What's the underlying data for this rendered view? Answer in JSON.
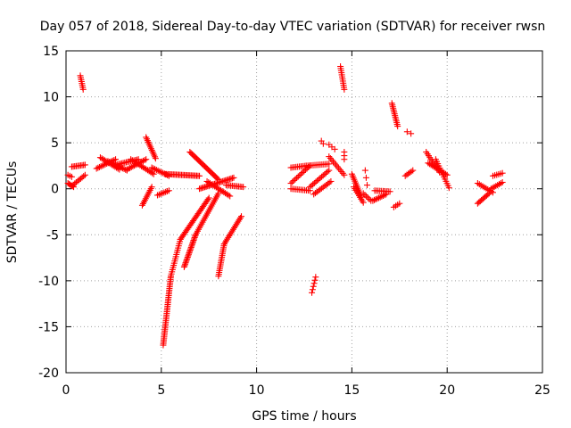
{
  "chart_data": {
    "type": "scatter",
    "title": "Day 057 of 2018, Sidereal Day-to-day VTEC variation (SDTVAR) for receiver rwsn",
    "xlabel": "GPS time / hours",
    "ylabel": "SDTVAR / TECUs",
    "xlim": [
      0,
      25
    ],
    "ylim": [
      -20,
      15
    ],
    "xticks": [
      0,
      5,
      10,
      15,
      20,
      25
    ],
    "yticks": [
      -20,
      -15,
      -10,
      -5,
      0,
      5,
      10,
      15
    ],
    "grid": true,
    "marker": "+",
    "color": "#ff0000",
    "segments": [
      {
        "from": [
          0.1,
          0.6
        ],
        "to": [
          0.4,
          0.2
        ],
        "n": 6
      },
      {
        "from": [
          0.1,
          1.5
        ],
        "to": [
          0.3,
          1.3
        ],
        "n": 3
      },
      {
        "from": [
          0.3,
          0.3
        ],
        "to": [
          1.0,
          1.5
        ],
        "n": 10
      },
      {
        "from": [
          0.3,
          2.4
        ],
        "to": [
          1.0,
          2.6
        ],
        "n": 10
      },
      {
        "from": [
          0.75,
          12.3
        ],
        "to": [
          0.9,
          10.8
        ],
        "n": 8
      },
      {
        "from": [
          1.6,
          2.2
        ],
        "to": [
          2.6,
          3.2
        ],
        "n": 14
      },
      {
        "from": [
          1.8,
          3.4
        ],
        "to": [
          2.8,
          2.1
        ],
        "n": 14
      },
      {
        "from": [
          2.2,
          3.0
        ],
        "to": [
          3.2,
          2.0
        ],
        "n": 14
      },
      {
        "from": [
          2.6,
          2.6
        ],
        "to": [
          3.8,
          3.2
        ],
        "n": 16
      },
      {
        "from": [
          3.2,
          2.1
        ],
        "to": [
          4.2,
          3.2
        ],
        "n": 14
      },
      {
        "from": [
          3.4,
          3.2
        ],
        "to": [
          4.6,
          1.6
        ],
        "n": 16
      },
      {
        "from": [
          4.2,
          5.6
        ],
        "to": [
          4.7,
          3.3
        ],
        "n": 14
      },
      {
        "from": [
          4.5,
          2.3
        ],
        "to": [
          5.4,
          1.4
        ],
        "n": 12
      },
      {
        "from": [
          4.0,
          -1.8
        ],
        "to": [
          4.5,
          0.2
        ],
        "n": 12
      },
      {
        "from": [
          4.8,
          -0.7
        ],
        "to": [
          5.4,
          -0.2
        ],
        "n": 8
      },
      {
        "from": [
          5.2,
          1.6
        ],
        "to": [
          7.0,
          1.4
        ],
        "n": 26
      },
      {
        "from": [
          5.1,
          -17.0
        ],
        "to": [
          5.5,
          -9.5
        ],
        "n": 40
      },
      {
        "from": [
          5.5,
          -9.5
        ],
        "to": [
          6.0,
          -5.5
        ],
        "n": 18
      },
      {
        "from": [
          6.0,
          -5.5
        ],
        "to": [
          7.5,
          -1.0
        ],
        "n": 30
      },
      {
        "from": [
          6.2,
          -8.5
        ],
        "to": [
          6.8,
          -5.0
        ],
        "n": 24
      },
      {
        "from": [
          6.8,
          -5.0
        ],
        "to": [
          8.0,
          -0.5
        ],
        "n": 24
      },
      {
        "from": [
          6.5,
          4.0
        ],
        "to": [
          8.0,
          1.0
        ],
        "n": 26
      },
      {
        "from": [
          7.0,
          0.0
        ],
        "to": [
          8.8,
          1.2
        ],
        "n": 26
      },
      {
        "from": [
          7.4,
          0.8
        ],
        "to": [
          8.6,
          -0.8
        ],
        "n": 16
      },
      {
        "from": [
          8.0,
          -9.5
        ],
        "to": [
          8.3,
          -6.0
        ],
        "n": 18
      },
      {
        "from": [
          8.3,
          -6.0
        ],
        "to": [
          9.2,
          -3.0
        ],
        "n": 18
      },
      {
        "from": [
          8.4,
          0.4
        ],
        "to": [
          9.3,
          0.2
        ],
        "n": 12
      },
      {
        "from": [
          11.8,
          2.3
        ],
        "to": [
          12.6,
          2.5
        ],
        "n": 10
      },
      {
        "from": [
          11.8,
          0.6
        ],
        "to": [
          12.8,
          2.5
        ],
        "n": 14
      },
      {
        "from": [
          11.8,
          0.0
        ],
        "to": [
          12.8,
          -0.2
        ],
        "n": 12
      },
      {
        "from": [
          12.6,
          2.5
        ],
        "to": [
          13.8,
          2.7
        ],
        "n": 14
      },
      {
        "from": [
          12.8,
          0.2
        ],
        "to": [
          13.8,
          2.0
        ],
        "n": 14
      },
      {
        "from": [
          13.0,
          -0.6
        ],
        "to": [
          13.9,
          0.8
        ],
        "n": 12
      },
      {
        "from": [
          12.9,
          -11.3
        ],
        "to": [
          13.1,
          -9.6
        ],
        "n": 6
      },
      {
        "from": [
          13.4,
          5.2
        ],
        "to": [
          13.5,
          4.9
        ],
        "n": 2
      },
      {
        "from": [
          13.8,
          4.8
        ],
        "to": [
          14.1,
          4.3
        ],
        "n": 3
      },
      {
        "from": [
          13.8,
          3.5
        ],
        "to": [
          14.6,
          1.5
        ],
        "n": 12
      },
      {
        "from": [
          14.4,
          13.3
        ],
        "to": [
          14.6,
          10.8
        ],
        "n": 12
      },
      {
        "from": [
          14.6,
          4.0
        ],
        "to": [
          14.6,
          3.2
        ],
        "n": 3
      },
      {
        "from": [
          15.0,
          1.6
        ],
        "to": [
          15.5,
          -0.9
        ],
        "n": 14
      },
      {
        "from": [
          15.1,
          0.2
        ],
        "to": [
          15.6,
          -1.5
        ],
        "n": 10
      },
      {
        "from": [
          15.6,
          -0.5
        ],
        "to": [
          16.0,
          -1.3
        ],
        "n": 6
      },
      {
        "from": [
          15.7,
          2.0
        ],
        "to": [
          15.8,
          0.4
        ],
        "n": 3
      },
      {
        "from": [
          16.1,
          -1.3
        ],
        "to": [
          16.8,
          -0.6
        ],
        "n": 10
      },
      {
        "from": [
          16.2,
          -0.2
        ],
        "to": [
          17.0,
          -0.3
        ],
        "n": 10
      },
      {
        "from": [
          17.1,
          9.3
        ],
        "to": [
          17.4,
          6.8
        ],
        "n": 14
      },
      {
        "from": [
          17.2,
          -2.0
        ],
        "to": [
          17.5,
          -1.6
        ],
        "n": 4
      },
      {
        "from": [
          17.8,
          1.4
        ],
        "to": [
          18.2,
          2.0
        ],
        "n": 6
      },
      {
        "from": [
          17.9,
          6.2
        ],
        "to": [
          18.1,
          6.0
        ],
        "n": 2
      },
      {
        "from": [
          18.9,
          4.0
        ],
        "to": [
          19.6,
          1.8
        ],
        "n": 12
      },
      {
        "from": [
          19.0,
          2.8
        ],
        "to": [
          20.0,
          1.5
        ],
        "n": 14
      },
      {
        "from": [
          19.4,
          3.2
        ],
        "to": [
          20.1,
          0.1
        ],
        "n": 14
      },
      {
        "from": [
          21.6,
          -1.6
        ],
        "to": [
          22.2,
          -0.5
        ],
        "n": 10
      },
      {
        "from": [
          21.6,
          0.6
        ],
        "to": [
          22.4,
          -0.4
        ],
        "n": 10
      },
      {
        "from": [
          22.3,
          0.0
        ],
        "to": [
          22.9,
          0.7
        ],
        "n": 8
      },
      {
        "from": [
          22.4,
          1.4
        ],
        "to": [
          22.9,
          1.7
        ],
        "n": 6
      }
    ]
  }
}
